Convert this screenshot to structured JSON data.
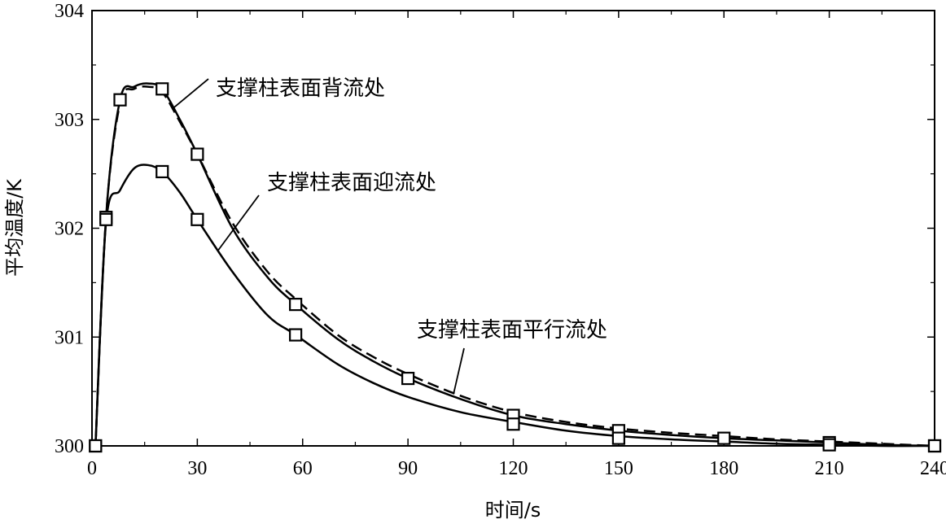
{
  "chart_data": {
    "type": "line",
    "title": "",
    "xlabel": "时间/s",
    "ylabel": "平均温度/K",
    "xlim": [
      0,
      240
    ],
    "ylim": [
      300,
      304
    ],
    "xticks": [
      "0",
      "30",
      "60",
      "90",
      "120",
      "150",
      "180",
      "210",
      "240"
    ],
    "yticks": [
      "300",
      "301",
      "302",
      "303",
      "304"
    ],
    "grid": false,
    "series": [
      {
        "name": "支撑柱表面背流处",
        "style": "solid-square",
        "x": [
          1,
          4,
          8,
          12,
          16,
          20,
          25,
          30,
          40,
          50,
          58,
          70,
          80,
          90,
          105,
          120,
          135,
          150,
          165,
          180,
          195,
          210,
          225,
          240
        ],
        "y": [
          300.0,
          302.1,
          303.18,
          303.3,
          303.33,
          303.28,
          303.0,
          302.68,
          302.0,
          301.55,
          301.3,
          300.98,
          300.78,
          300.62,
          300.43,
          300.28,
          300.2,
          300.14,
          300.1,
          300.07,
          300.05,
          300.03,
          300.01,
          300.0
        ],
        "marker_x": [
          1,
          4,
          8,
          20,
          30,
          58,
          90,
          120,
          150,
          180,
          210,
          240
        ],
        "marker_y": [
          300.0,
          302.1,
          303.18,
          303.28,
          302.68,
          301.3,
          300.62,
          300.28,
          300.14,
          300.07,
          300.03,
          300.0
        ]
      },
      {
        "name": "支撑柱表面迎流处",
        "style": "solid-square",
        "x": [
          1,
          4,
          8,
          12,
          16,
          20,
          25,
          30,
          40,
          50,
          58,
          70,
          80,
          90,
          105,
          120,
          135,
          150,
          165,
          180,
          195,
          210,
          225,
          240
        ],
        "y": [
          300.0,
          302.05,
          302.35,
          302.55,
          302.58,
          302.52,
          302.33,
          302.08,
          301.6,
          301.2,
          301.02,
          300.75,
          300.58,
          300.45,
          300.31,
          300.22,
          300.14,
          300.09,
          300.06,
          300.04,
          300.02,
          300.01,
          300.0,
          300.0
        ],
        "marker_x": [
          1,
          4,
          20,
          30,
          58,
          120,
          150,
          210,
          240
        ],
        "marker_y": [
          300.0,
          302.08,
          302.52,
          302.08,
          301.02,
          300.2,
          300.07,
          300.01,
          300.0
        ]
      },
      {
        "name": "支撑柱表面平行流处",
        "style": "dashed",
        "x": [
          1,
          4,
          8,
          12,
          16,
          20,
          25,
          30,
          40,
          50,
          58,
          70,
          80,
          90,
          105,
          120,
          135,
          150,
          165,
          180,
          195,
          210,
          225,
          240
        ],
        "y": [
          300.0,
          302.1,
          303.15,
          303.28,
          303.3,
          303.25,
          302.98,
          302.68,
          302.05,
          301.6,
          301.35,
          301.02,
          300.82,
          300.66,
          300.46,
          300.31,
          300.22,
          300.16,
          300.12,
          300.09,
          300.06,
          300.04,
          300.02,
          300.0
        ]
      }
    ],
    "annotations": [
      {
        "text": "支撑柱表面背流处",
        "target_x": 23,
        "target_y": 303.1
      },
      {
        "text": "支撑柱表面迎流处",
        "target_x": 36,
        "target_y": 301.8
      },
      {
        "text": "支撑柱表面平行流处",
        "target_x": 103,
        "target_y": 300.48
      }
    ]
  }
}
